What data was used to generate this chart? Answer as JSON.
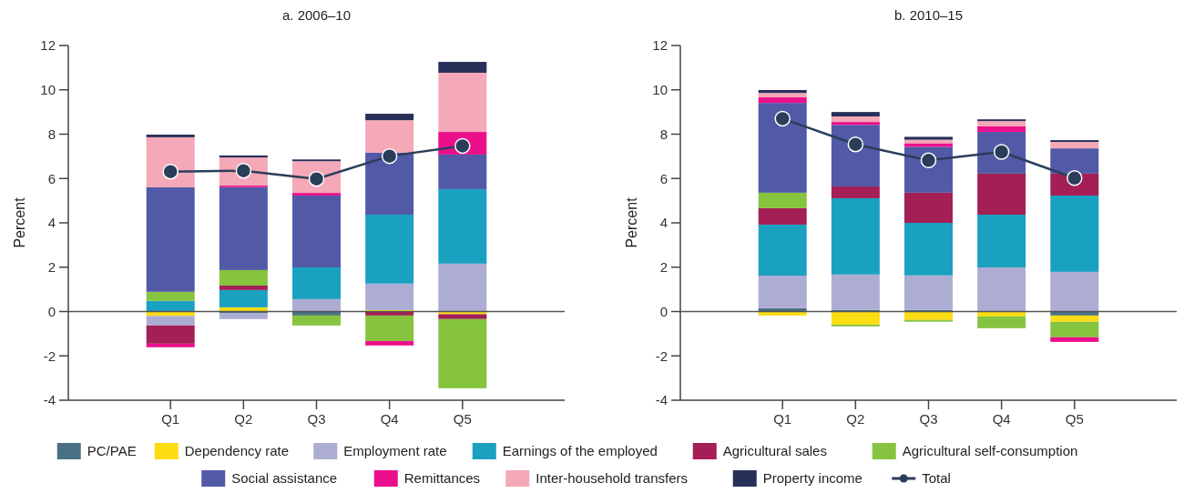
{
  "chart_data": [
    {
      "type": "bar",
      "title": "a.  2006–10",
      "ylabel": "Percent",
      "stacked": true,
      "legend": "bottom",
      "marker": "circle",
      "categories": [
        "Q1",
        "Q2",
        "Q3",
        "Q4",
        "Q5"
      ],
      "ylim": [
        -4,
        12
      ],
      "yticks": [
        -4,
        -2,
        0,
        2,
        4,
        6,
        8,
        10,
        12
      ],
      "series": [
        {
          "name": "PC/PAE",
          "color": "#4a7183",
          "values": [
            0,
            -0.08,
            -0.18,
            0,
            0
          ]
        },
        {
          "name": "Dependency rate",
          "color": "#fcdc12",
          "values": [
            -0.2,
            0.19,
            0,
            0.07,
            -0.12
          ]
        },
        {
          "name": "Employment rate",
          "color": "#adadd4",
          "values": [
            -0.43,
            -0.26,
            0.56,
            1.19,
            2.16
          ]
        },
        {
          "name": "Earnings of the employed",
          "color": "#1ba1c0",
          "values": [
            0.48,
            0.78,
            1.43,
            3.11,
            3.36
          ]
        },
        {
          "name": "Agricultural sales",
          "color": "#a31f55",
          "values": [
            -0.82,
            0.2,
            0,
            -0.18,
            -0.22
          ]
        },
        {
          "name": "Agricultural self-consumption",
          "color": "#86c440",
          "values": [
            0.41,
            0.7,
            -0.45,
            -1.15,
            -3.12
          ]
        },
        {
          "name": "Social assistance",
          "color": "#525aa8",
          "values": [
            4.71,
            3.74,
            3.24,
            2.79,
            1.56
          ]
        },
        {
          "name": "Remittances",
          "color": "#ec0f8c",
          "values": [
            -0.16,
            0.07,
            0.12,
            -0.2,
            1.02
          ]
        },
        {
          "name": "Inter-household transfers",
          "color": "#f5a8b8",
          "values": [
            2.26,
            1.27,
            1.43,
            1.47,
            2.67
          ]
        },
        {
          "name": "Property income",
          "color": "#28305a",
          "values": [
            0.12,
            0.09,
            0.08,
            0.29,
            0.49
          ]
        },
        {
          "name": "Total",
          "type": "line",
          "color": "#2b3e59",
          "values": [
            6.31,
            6.35,
            5.98,
            7.01,
            7.47
          ]
        }
      ]
    },
    {
      "type": "bar",
      "title": "b.  2010–15",
      "ylabel": "Percent",
      "stacked": true,
      "legend": "bottom",
      "marker": "circle",
      "categories": [
        "Q1",
        "Q2",
        "Q3",
        "Q4",
        "Q5"
      ],
      "ylim": [
        -4,
        12
      ],
      "yticks": [
        -4,
        -2,
        0,
        2,
        4,
        6,
        8,
        10,
        12
      ],
      "series": [
        {
          "name": "PC/PAE",
          "color": "#4a7183",
          "values": [
            0.15,
            0.07,
            0.07,
            0,
            -0.18
          ]
        },
        {
          "name": "Dependency rate",
          "color": "#fcdc12",
          "values": [
            -0.18,
            -0.59,
            -0.38,
            -0.22,
            -0.28
          ]
        },
        {
          "name": "Employment rate",
          "color": "#adadd4",
          "values": [
            1.47,
            1.6,
            1.56,
            1.99,
            1.79
          ]
        },
        {
          "name": "Earnings of the employed",
          "color": "#1ba1c0",
          "values": [
            2.3,
            3.44,
            2.37,
            2.38,
            3.44
          ]
        },
        {
          "name": "Agricultural sales",
          "color": "#a31f55",
          "values": [
            0.74,
            0.53,
            1.36,
            1.85,
            0.99
          ]
        },
        {
          "name": "Agricultural self-consumption",
          "color": "#86c440",
          "values": [
            0.7,
            -0.08,
            -0.08,
            -0.53,
            -0.7
          ]
        },
        {
          "name": "Social assistance",
          "color": "#525aa8",
          "values": [
            4.05,
            2.78,
            2.07,
            1.88,
            1.14
          ]
        },
        {
          "name": "Remittances",
          "color": "#ec0f8c",
          "values": [
            0.25,
            0.13,
            0.16,
            0.25,
            -0.21
          ]
        },
        {
          "name": "Inter-household transfers",
          "color": "#f5a8b8",
          "values": [
            0.2,
            0.25,
            0.16,
            0.24,
            0.29
          ]
        },
        {
          "name": "Property income",
          "color": "#28305a",
          "values": [
            0.13,
            0.2,
            0.13,
            0.08,
            0.08
          ]
        },
        {
          "name": "Total",
          "type": "line",
          "color": "#2b3e59",
          "values": [
            8.7,
            7.54,
            6.82,
            7.2,
            6.02
          ]
        }
      ]
    }
  ]
}
